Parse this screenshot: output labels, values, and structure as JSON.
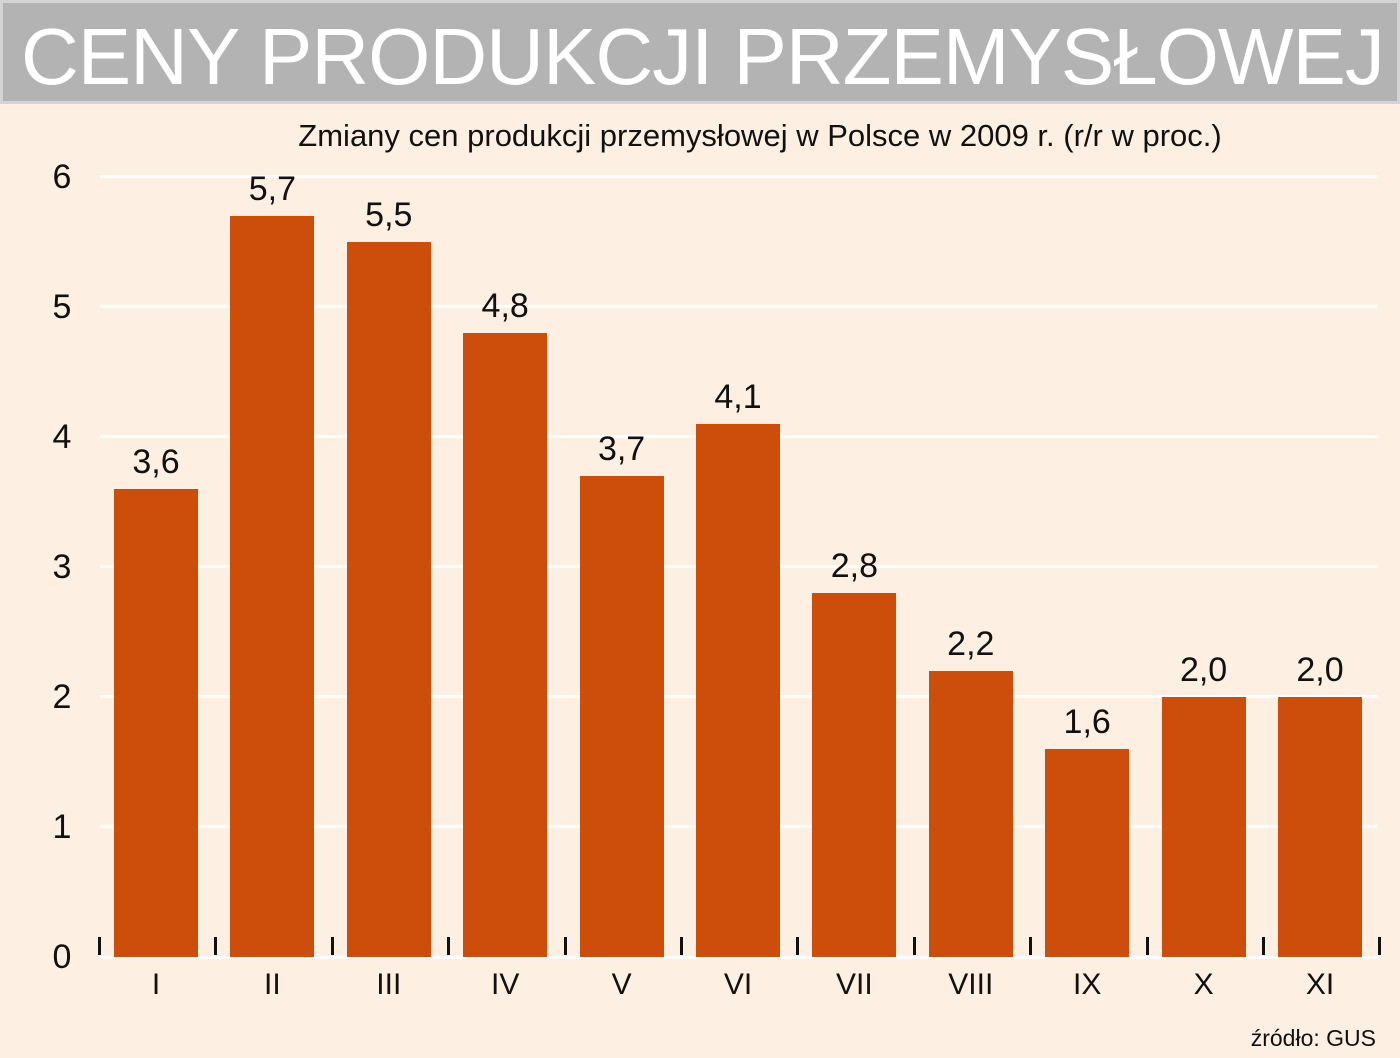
{
  "header": {
    "title": "CENY PRODUKCJI PRZEMYSŁOWEJ"
  },
  "source": "źródło: GUS",
  "colors": {
    "bar": "#cc4e0a",
    "background": "#fdf0e2",
    "header": "#b3b3b3",
    "grid": "#ffffff"
  },
  "chart_data": {
    "type": "bar",
    "title": "Zmiany cen produkcji przemysłowej w Polsce w 2009 r. (r/r w proc.)",
    "xlabel": "",
    "ylabel": "",
    "categories": [
      "I",
      "II",
      "III",
      "IV",
      "V",
      "VI",
      "VII",
      "VIII",
      "IX",
      "X",
      "XI"
    ],
    "values": [
      3.6,
      5.7,
      5.5,
      4.8,
      3.7,
      4.1,
      2.8,
      2.2,
      1.6,
      2.0,
      2.0
    ],
    "value_labels": [
      "3,6",
      "5,7",
      "5,5",
      "4,8",
      "3,7",
      "4,1",
      "2,8",
      "2,2",
      "1,6",
      "2,0",
      "2,0"
    ],
    "yticks": [
      0,
      1,
      2,
      3,
      4,
      5,
      6
    ],
    "ylim": [
      0,
      6
    ],
    "grid": true,
    "legend": null
  }
}
